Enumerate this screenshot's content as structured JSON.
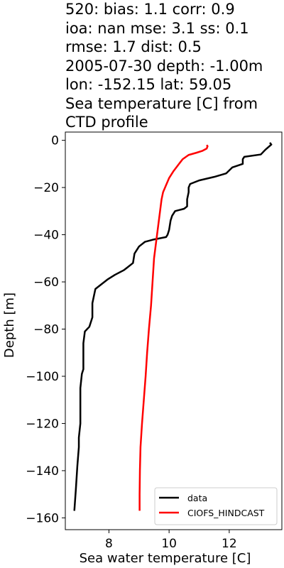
{
  "chart_data": {
    "type": "line",
    "title_lines": [
      "520: bias: 1.1  corr: 0.9",
      "ioa: nan  mse: 3.1  ss: 0.1",
      "rmse: 1.7  dist: 0.5",
      "2005-07-30 depth: -1.00m",
      "lon: -152.15 lat: 59.05",
      "Sea temperature [C] from",
      "CTD profile"
    ],
    "xlabel": "Sea water temperature [C]",
    "ylabel": "Depth [m]",
    "xlim": [
      6.55,
      13.75
    ],
    "ylim": [
      -165,
      3.5
    ],
    "xticks": [
      8,
      10,
      12
    ],
    "yticks": [
      0,
      -20,
      -40,
      -60,
      -80,
      -100,
      -120,
      -140,
      -160
    ],
    "grid": false,
    "legend_position": "lower-right",
    "series": [
      {
        "name": "data",
        "color": "#000000",
        "points": [
          [
            13.35,
            -1
          ],
          [
            13.4,
            -1.8
          ],
          [
            13.2,
            -4
          ],
          [
            13.05,
            -6
          ],
          [
            12.5,
            -7
          ],
          [
            12.45,
            -8
          ],
          [
            12.45,
            -10
          ],
          [
            12.1,
            -11.5
          ],
          [
            11.9,
            -14
          ],
          [
            11.5,
            -15.5
          ],
          [
            11.0,
            -17
          ],
          [
            10.7,
            -18.5
          ],
          [
            10.65,
            -20
          ],
          [
            10.65,
            -22
          ],
          [
            10.6,
            -25
          ],
          [
            10.6,
            -28
          ],
          [
            10.5,
            -29
          ],
          [
            10.2,
            -30
          ],
          [
            10.1,
            -32
          ],
          [
            10.05,
            -34
          ],
          [
            10.0,
            -38
          ],
          [
            9.95,
            -40
          ],
          [
            9.9,
            -41
          ],
          [
            9.5,
            -42
          ],
          [
            9.2,
            -43
          ],
          [
            9.0,
            -45
          ],
          [
            8.85,
            -48
          ],
          [
            8.8,
            -52
          ],
          [
            8.6,
            -54
          ],
          [
            8.5,
            -55
          ],
          [
            8.2,
            -57
          ],
          [
            7.95,
            -59
          ],
          [
            7.75,
            -61
          ],
          [
            7.55,
            -63
          ],
          [
            7.5,
            -66
          ],
          [
            7.45,
            -69
          ],
          [
            7.45,
            -75
          ],
          [
            7.35,
            -79
          ],
          [
            7.2,
            -81
          ],
          [
            7.15,
            -86
          ],
          [
            7.15,
            -93
          ],
          [
            7.15,
            -97
          ],
          [
            7.1,
            -99
          ],
          [
            7.05,
            -105
          ],
          [
            7.05,
            -120
          ],
          [
            7.0,
            -126
          ],
          [
            7.0,
            -130
          ],
          [
            6.95,
            -138
          ],
          [
            6.9,
            -148
          ],
          [
            6.85,
            -157
          ]
        ]
      },
      {
        "name": "CIOFS_HINDCAST",
        "color": "#ff0000",
        "points": [
          [
            11.25,
            -2
          ],
          [
            11.28,
            -2.5
          ],
          [
            11.25,
            -3.5
          ],
          [
            11.1,
            -4.5
          ],
          [
            10.9,
            -5.3
          ],
          [
            10.65,
            -6.2
          ],
          [
            10.45,
            -8
          ],
          [
            10.3,
            -10.5
          ],
          [
            10.15,
            -13
          ],
          [
            10.0,
            -16
          ],
          [
            9.9,
            -19
          ],
          [
            9.8,
            -22
          ],
          [
            9.75,
            -25
          ],
          [
            9.7,
            -30
          ],
          [
            9.65,
            -35
          ],
          [
            9.6,
            -40
          ],
          [
            9.55,
            -45
          ],
          [
            9.5,
            -50
          ],
          [
            9.45,
            -60
          ],
          [
            9.4,
            -70
          ],
          [
            9.33,
            -80
          ],
          [
            9.27,
            -90
          ],
          [
            9.22,
            -100
          ],
          [
            9.16,
            -110
          ],
          [
            9.1,
            -120
          ],
          [
            9.05,
            -130
          ],
          [
            9.03,
            -140
          ],
          [
            9.02,
            -150
          ],
          [
            9.02,
            -157
          ]
        ]
      }
    ]
  }
}
